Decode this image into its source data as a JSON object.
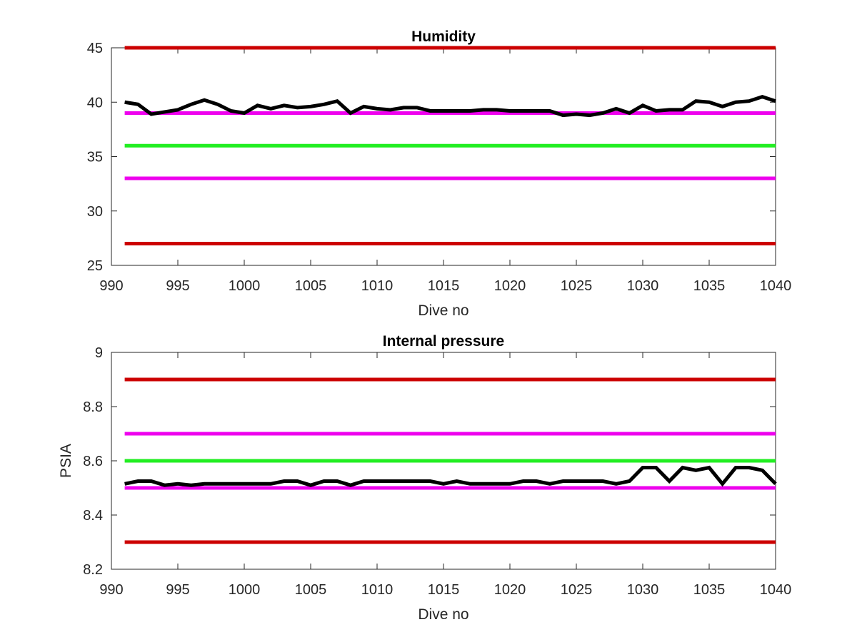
{
  "chart_data": [
    {
      "type": "line",
      "title": "Humidity",
      "xlabel": "Dive no",
      "ylabel": "",
      "xlim": [
        990,
        1040
      ],
      "ylim": [
        25,
        45
      ],
      "xticks": [
        "990",
        "995",
        "1000",
        "1005",
        "1010",
        "1015",
        "1020",
        "1025",
        "1030",
        "1035",
        "1040"
      ],
      "yticks": [
        "25",
        "30",
        "35",
        "40",
        "45"
      ],
      "grid": false,
      "legend": "none",
      "reference_lines": [
        {
          "y": 45,
          "color": "#cc0000"
        },
        {
          "y": 39,
          "color": "#ee00ee"
        },
        {
          "y": 36,
          "color": "#22ee22"
        },
        {
          "y": 33,
          "color": "#ee00ee"
        },
        {
          "y": 27,
          "color": "#cc0000"
        }
      ],
      "series": [
        {
          "color": "#000000",
          "x": [
            991,
            992,
            993,
            994,
            995,
            996,
            997,
            998,
            999,
            1000,
            1001,
            1002,
            1003,
            1004,
            1005,
            1006,
            1007,
            1008,
            1009,
            1010,
            1011,
            1012,
            1013,
            1014,
            1015,
            1016,
            1017,
            1018,
            1019,
            1020,
            1021,
            1022,
            1023,
            1024,
            1025,
            1026,
            1027,
            1028,
            1029,
            1030,
            1031,
            1032,
            1033,
            1034,
            1035,
            1036,
            1037,
            1038,
            1039,
            1040
          ],
          "y": [
            40.0,
            39.8,
            38.9,
            39.1,
            39.3,
            39.8,
            40.2,
            39.8,
            39.2,
            39.0,
            39.7,
            39.4,
            39.7,
            39.5,
            39.6,
            39.8,
            40.1,
            39.0,
            39.6,
            39.4,
            39.3,
            39.5,
            39.5,
            39.2,
            39.2,
            39.2,
            39.2,
            39.3,
            39.3,
            39.2,
            39.2,
            39.2,
            39.2,
            38.8,
            38.9,
            38.8,
            39.0,
            39.4,
            39.0,
            39.7,
            39.2,
            39.3,
            39.3,
            40.1,
            40.0,
            39.6,
            40.0,
            40.1,
            40.5,
            40.1
          ]
        }
      ]
    },
    {
      "type": "line",
      "title": "Internal pressure",
      "xlabel": "Dive no",
      "ylabel": "PSIA",
      "xlim": [
        990,
        1040
      ],
      "ylim": [
        8.2,
        9
      ],
      "xticks": [
        "990",
        "995",
        "1000",
        "1005",
        "1010",
        "1015",
        "1020",
        "1025",
        "1030",
        "1035",
        "1040"
      ],
      "yticks": [
        "8.2",
        "8.4",
        "8.6",
        "8.8",
        "9"
      ],
      "grid": false,
      "legend": "none",
      "reference_lines": [
        {
          "y": 8.9,
          "color": "#cc0000"
        },
        {
          "y": 8.7,
          "color": "#ee00ee"
        },
        {
          "y": 8.6,
          "color": "#22ee22"
        },
        {
          "y": 8.5,
          "color": "#ee00ee"
        },
        {
          "y": 8.3,
          "color": "#cc0000"
        }
      ],
      "series": [
        {
          "color": "#000000",
          "x": [
            991,
            992,
            993,
            994,
            995,
            996,
            997,
            998,
            999,
            1000,
            1001,
            1002,
            1003,
            1004,
            1005,
            1006,
            1007,
            1008,
            1009,
            1010,
            1011,
            1012,
            1013,
            1014,
            1015,
            1016,
            1017,
            1018,
            1019,
            1020,
            1021,
            1022,
            1023,
            1024,
            1025,
            1026,
            1027,
            1028,
            1029,
            1030,
            1031,
            1032,
            1033,
            1034,
            1035,
            1036,
            1037,
            1038,
            1039,
            1040
          ],
          "y": [
            8.515,
            8.525,
            8.525,
            8.51,
            8.515,
            8.51,
            8.515,
            8.515,
            8.515,
            8.515,
            8.515,
            8.515,
            8.525,
            8.525,
            8.51,
            8.525,
            8.525,
            8.51,
            8.525,
            8.525,
            8.525,
            8.525,
            8.525,
            8.525,
            8.515,
            8.525,
            8.515,
            8.515,
            8.515,
            8.515,
            8.525,
            8.525,
            8.515,
            8.525,
            8.525,
            8.525,
            8.525,
            8.515,
            8.525,
            8.575,
            8.575,
            8.525,
            8.575,
            8.565,
            8.575,
            8.515,
            8.575,
            8.575,
            8.565,
            8.515
          ]
        }
      ]
    }
  ]
}
